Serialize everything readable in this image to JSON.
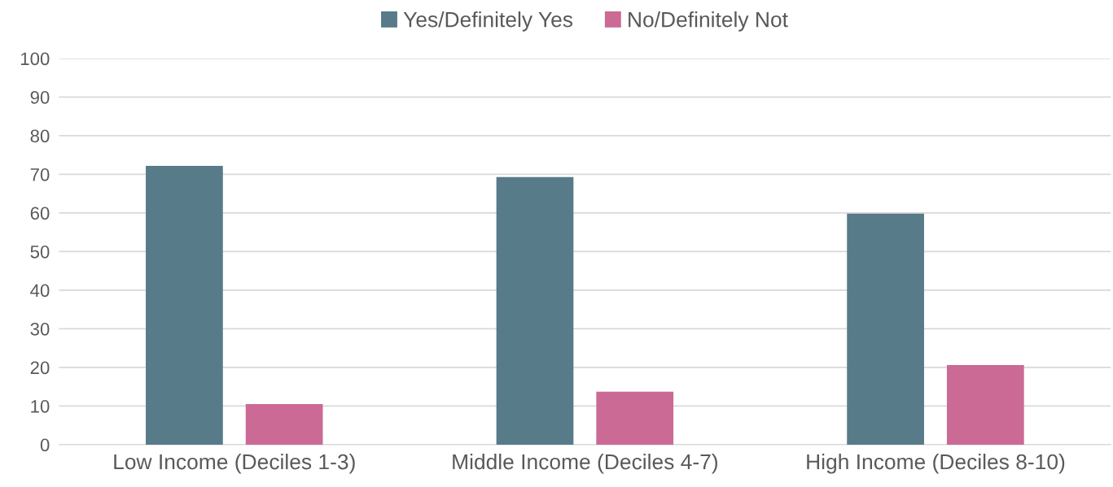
{
  "chart_data": {
    "type": "bar",
    "categories": [
      "Low Income (Deciles 1-3)",
      "Middle Income (Deciles 4-7)",
      "High Income (Deciles 8-10)"
    ],
    "series": [
      {
        "name": "Yes/Definitely Yes",
        "color": "#587b8a",
        "values": [
          72.2,
          69.3,
          59.8
        ]
      },
      {
        "name": "No/Definitely Not",
        "color": "#cb6a95",
        "values": [
          10.5,
          13.7,
          20.6
        ]
      }
    ],
    "ylim": [
      0,
      100
    ],
    "yticks": [
      0,
      10,
      20,
      30,
      40,
      50,
      60,
      70,
      80,
      90,
      100
    ],
    "grid": "y",
    "legend": "top"
  }
}
